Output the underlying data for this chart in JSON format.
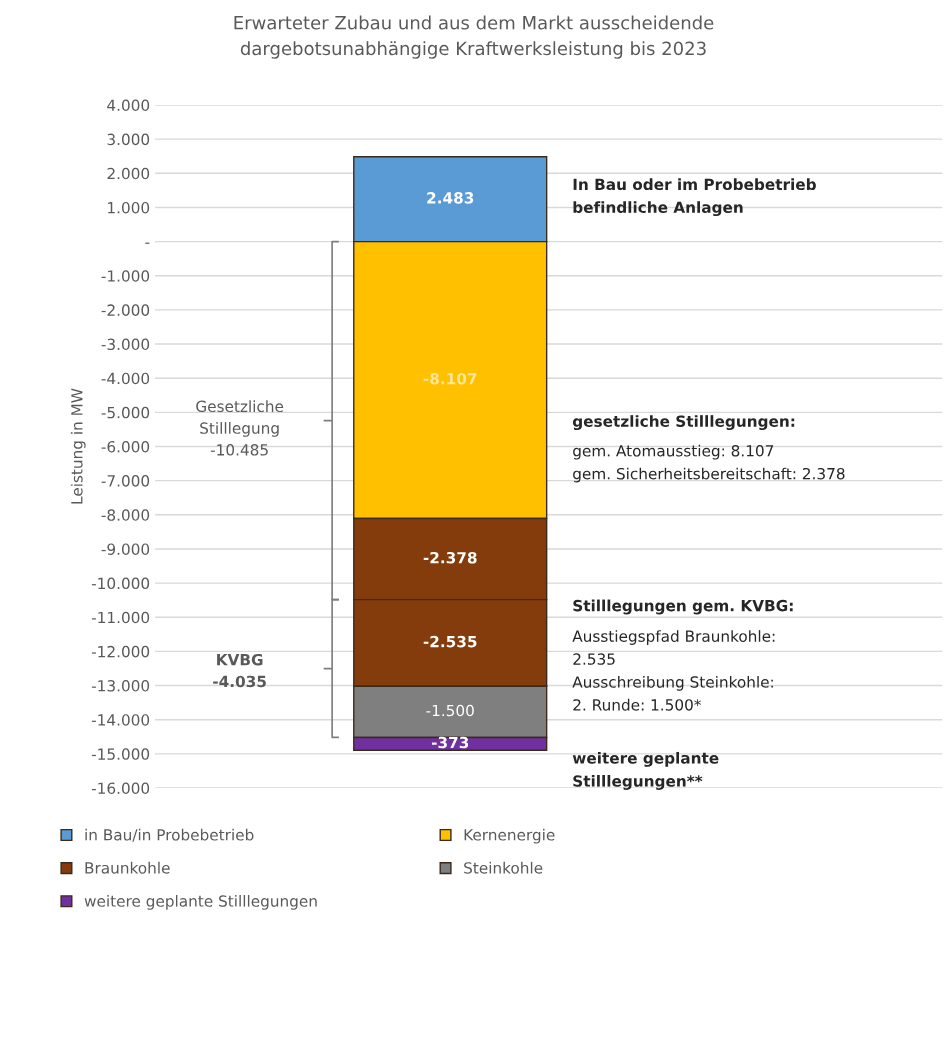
{
  "chart_data": {
    "type": "bar",
    "title": "Erwarteter Zubau und aus dem Markt ausscheidende\ndargebotsunabhängige Kraftwerksleistung bis 2023",
    "ylabel": "Leistung in MW",
    "categories": [
      null
    ],
    "stacked": true,
    "series": [
      {
        "name": "in Bau/in Probebetrieb",
        "color": "#5b9bd5",
        "values": [
          2483
        ],
        "value_labels": [
          "2.483"
        ]
      },
      {
        "name": "Kernenergie",
        "color": "#ffc000",
        "values": [
          -8107
        ],
        "value_labels": [
          "-8.107"
        ]
      },
      {
        "name": "Braunkohle",
        "color": "#843c0c",
        "values": [
          -2378
        ],
        "value_labels": [
          "-2.378"
        ]
      },
      {
        "color": "#843c0c",
        "values": [
          -2535
        ],
        "value_labels": [
          "-2.535"
        ]
      },
      {
        "name": "Steinkohle",
        "color": "#7f7f7f",
        "values": [
          -1500
        ],
        "value_labels": [
          "-1.500"
        ]
      },
      {
        "name": "weitere geplante Stilllegungen",
        "color": "#7030a0",
        "values": [
          -373
        ],
        "value_labels": [
          "-373"
        ]
      }
    ],
    "ylim": [
      -16000,
      4000
    ],
    "yticks": [
      {
        "value": 4000,
        "label": "4.000"
      },
      {
        "value": 3000,
        "label": "3.000"
      },
      {
        "value": 2000,
        "label": "2.000"
      },
      {
        "value": 1000,
        "label": "1.000"
      },
      {
        "value": 0,
        "label": "-"
      },
      {
        "value": -1000,
        "label": "-1.000"
      },
      {
        "value": -2000,
        "label": "-2.000"
      },
      {
        "value": -3000,
        "label": "-3.000"
      },
      {
        "value": -4000,
        "label": "-4.000"
      },
      {
        "value": -5000,
        "label": "-5.000"
      },
      {
        "value": -6000,
        "label": "-6.000"
      },
      {
        "value": -7000,
        "label": "-7.000"
      },
      {
        "value": -8000,
        "label": "-8.000"
      },
      {
        "value": -9000,
        "label": "-9.000"
      },
      {
        "value": -10000,
        "label": "-10.000"
      },
      {
        "value": -11000,
        "label": "-11.000"
      },
      {
        "value": -12000,
        "label": "-12.000"
      },
      {
        "value": -13000,
        "label": "-13.000"
      },
      {
        "value": -14000,
        "label": "-14.000"
      },
      {
        "value": -15000,
        "label": "-15.000"
      },
      {
        "value": -16000,
        "label": "-16.000"
      }
    ],
    "grid": "y",
    "legend": "bottom",
    "annotations": [
      "In Bau oder im Probebetrieb\nbefindliche Anlagen",
      "gesetzliche Stilllegungen:",
      "gem. Atomausstieg: 8.107\ngem. Sicherheitsbereitschaft: 2.378",
      "Stilllegungen gem. KVBG:",
      "Ausstiegspfad Braunkohle:\n2.535\nAusschreibung Steinkohle:\n2. Runde: 1.500*",
      "weitere geplante\nStilllegungen**",
      "Gesetzliche\nStilllegung\n-10.485",
      "KVBG\n-4.035"
    ]
  }
}
